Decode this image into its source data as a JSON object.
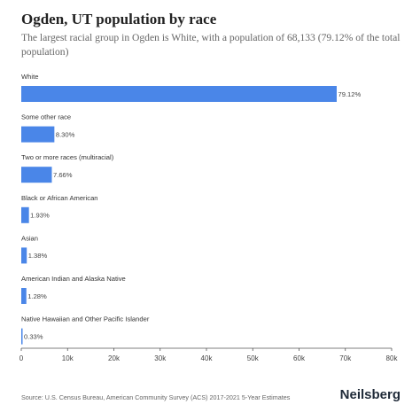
{
  "title": "Ogden, UT population by race",
  "subtitle": "The largest racial group in Ogden is White, with a population of 68,133 (79.12% of the total population)",
  "source": "Source: U.S. Census Bureau, American Community Survey (ACS) 2017-2021 5-Year Estimates",
  "brand": "Neilsberg",
  "colors": {
    "bar": "#4a86e8",
    "axis": "#555555"
  },
  "chart_data": {
    "type": "bar",
    "orientation": "horizontal",
    "categories": [
      "White",
      "Some other race",
      "Two or more races (multiracial)",
      "Black or African American",
      "Asian",
      "American Indian and Alaska Native",
      "Native Hawaiian and Other Pacific Islander"
    ],
    "values": [
      68133,
      7150,
      6600,
      1660,
      1190,
      1100,
      285
    ],
    "value_labels": [
      "79.12%",
      "8.30%",
      "7.66%",
      "1.93%",
      "1.38%",
      "1.28%",
      "0.33%"
    ],
    "xlim": [
      0,
      80000
    ],
    "xticks": [
      0,
      10000,
      20000,
      30000,
      40000,
      50000,
      60000,
      70000,
      80000
    ],
    "xtick_labels": [
      "0",
      "10k",
      "20k",
      "30k",
      "40k",
      "50k",
      "60k",
      "70k",
      "80k"
    ],
    "grid": false,
    "legend": "none"
  }
}
